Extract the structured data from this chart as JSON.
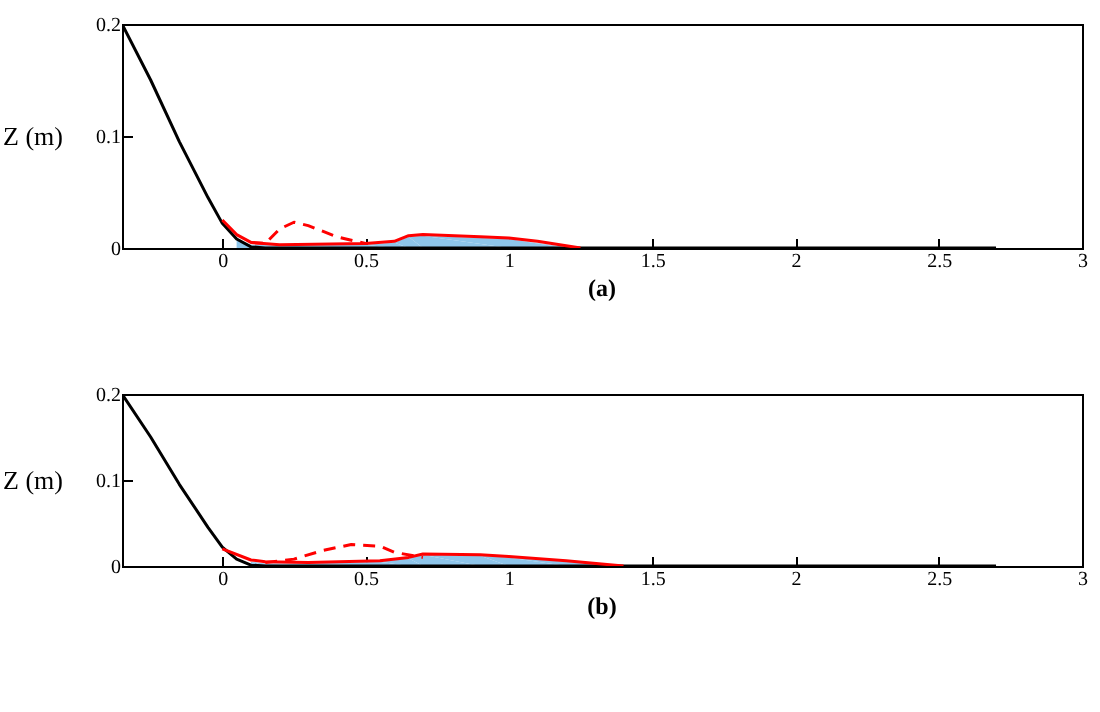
{
  "chart_data": [
    {
      "type": "line",
      "ylabel": "Z (m)",
      "annotations": [
        "(a)"
      ],
      "xlim": [
        -0.35,
        3
      ],
      "xticks": [
        0,
        0.5,
        1,
        1.5,
        2,
        2.5,
        3
      ],
      "ylim": [
        0,
        0.2
      ],
      "yticks": [
        0,
        0.1,
        0.2
      ],
      "series": [
        {
          "type": "area",
          "color": "#8ec5ea",
          "x": [
            0.05,
            0.1,
            0.5,
            0.6,
            0.65,
            0.7,
            1.0,
            1.2,
            1.22
          ],
          "values": [
            0.008,
            0.003,
            0.003,
            0.005,
            0.01,
            0.011,
            0.008,
            0.001,
            0
          ]
        },
        {
          "color": "#000000",
          "x": [
            -0.35,
            -0.25,
            -0.15,
            -0.05,
            0,
            0.05,
            0.1,
            0.15,
            2.7
          ],
          "values": [
            0.2,
            0.15,
            0.095,
            0.045,
            0.022,
            0.008,
            0.001,
            0,
            0
          ]
        },
        {
          "color": "#ff0000",
          "x": [
            0,
            0.05,
            0.1,
            0.2,
            0.5,
            0.6,
            0.65,
            0.7,
            0.9,
            1.0,
            1.1,
            1.2,
            1.25
          ],
          "values": [
            0.025,
            0.012,
            0.005,
            0.003,
            0.004,
            0.006,
            0.011,
            0.012,
            0.01,
            0.009,
            0.006,
            0.002,
            0
          ]
        },
        {
          "color": "#ff0000",
          "line_style": "dashed",
          "x": [
            0.1,
            0.15,
            0.2,
            0.25,
            0.3,
            0.4,
            0.5
          ],
          "values": [
            0.005,
            0.004,
            0.017,
            0.023,
            0.02,
            0.01,
            0.004
          ]
        }
      ]
    },
    {
      "type": "line",
      "ylabel": "Z (m)",
      "annotations": [
        "(b)"
      ],
      "xlim": [
        -0.35,
        3
      ],
      "xticks": [
        0,
        0.5,
        1,
        1.5,
        2,
        2.5,
        3
      ],
      "ylim": [
        0,
        0.2
      ],
      "yticks": [
        0,
        0.1,
        0.2
      ],
      "series": [
        {
          "type": "area",
          "color": "#8ec5ea",
          "x": [
            0.1,
            0.15,
            0.3,
            0.55,
            0.65,
            0.7,
            0.9,
            1.0,
            1.2,
            1.38
          ],
          "values": [
            0.005,
            0.003,
            0.003,
            0.005,
            0.009,
            0.013,
            0.012,
            0.01,
            0.005,
            0
          ]
        },
        {
          "color": "#000000",
          "x": [
            -0.35,
            -0.25,
            -0.15,
            -0.05,
            0,
            0.05,
            0.1,
            0.15,
            2.7
          ],
          "values": [
            0.2,
            0.15,
            0.095,
            0.045,
            0.022,
            0.008,
            0.001,
            0,
            0
          ]
        },
        {
          "color": "#ff0000",
          "x": [
            0,
            0.1,
            0.15,
            0.3,
            0.55,
            0.65,
            0.7,
            0.9,
            1.0,
            1.2,
            1.4
          ],
          "values": [
            0.02,
            0.007,
            0.005,
            0.004,
            0.006,
            0.01,
            0.014,
            0.013,
            0.011,
            0.006,
            0
          ]
        },
        {
          "color": "#ff0000",
          "line_style": "dashed",
          "x": [
            0.15,
            0.25,
            0.35,
            0.45,
            0.55,
            0.6,
            0.7
          ],
          "values": [
            0.004,
            0.008,
            0.018,
            0.025,
            0.023,
            0.016,
            0.01
          ]
        }
      ]
    }
  ]
}
